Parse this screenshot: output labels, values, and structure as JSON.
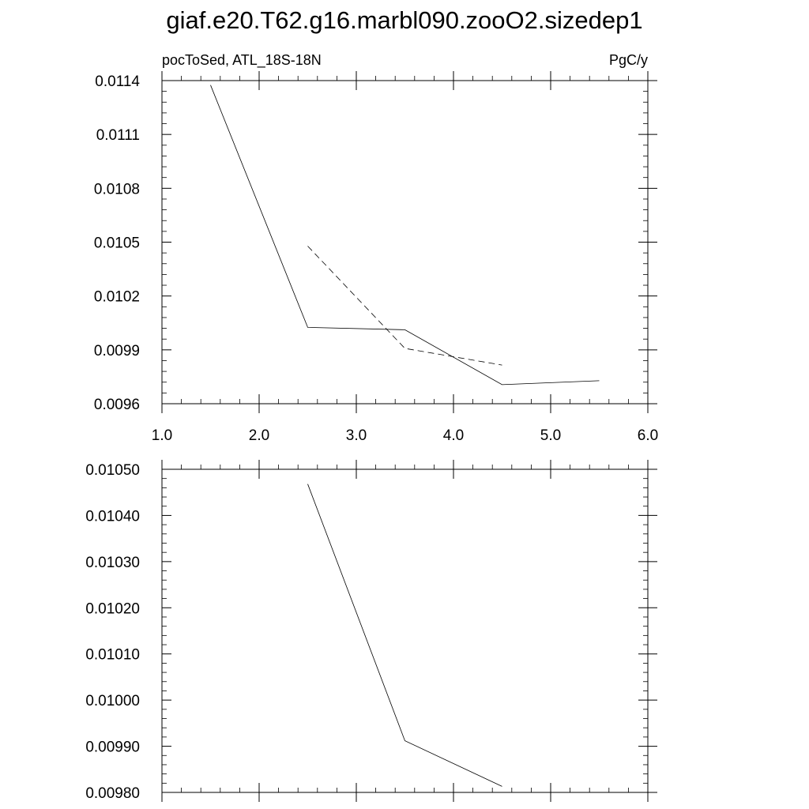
{
  "figure": {
    "title": "giaf.e20.T62.g16.marbl090.zooO2.sizedep1"
  },
  "chart_data": [
    {
      "type": "line",
      "left_label": "pocToSed, ATL_18S-18N",
      "right_label": "PgC/y",
      "xlim": [
        1.0,
        6.0
      ],
      "ylim": [
        0.0096,
        0.0114
      ],
      "x_ticks": [
        1.0,
        2.0,
        3.0,
        4.0,
        5.0,
        6.0
      ],
      "x_tick_labels": [
        "1.0",
        "2.0",
        "3.0",
        "4.0",
        "5.0",
        "6.0"
      ],
      "y_ticks": [
        0.0096,
        0.0099,
        0.0102,
        0.0105,
        0.0108,
        0.0111,
        0.0114
      ],
      "y_tick_labels": [
        "0.0096",
        "0.0099",
        "0.0102",
        "0.0105",
        "0.0108",
        "0.0111",
        "0.0114"
      ],
      "grid": false,
      "series": [
        {
          "style": "solid",
          "x": [
            1.5,
            2.5,
            3.5,
            4.5,
            5.5
          ],
          "y": [
            0.011375,
            0.010025,
            0.010012,
            0.009706,
            0.009728
          ]
        },
        {
          "style": "dashed",
          "x": [
            2.5,
            3.5,
            4.5
          ],
          "y": [
            0.010478,
            0.009908,
            0.009815
          ]
        }
      ]
    },
    {
      "type": "line",
      "xlim": [
        1.0,
        6.0
      ],
      "ylim": [
        0.0098,
        0.0105
      ],
      "x_ticks": [
        1.0,
        2.0,
        3.0,
        4.0,
        5.0,
        6.0
      ],
      "y_ticks": [
        0.0098,
        0.0099,
        0.01,
        0.0101,
        0.0102,
        0.0103,
        0.0104,
        0.0105
      ],
      "y_tick_labels": [
        "0.00980",
        "0.00990",
        "0.01000",
        "0.01010",
        "0.01020",
        "0.01030",
        "0.01040",
        "0.01050"
      ],
      "grid": false,
      "series": [
        {
          "style": "solid",
          "x": [
            2.5,
            3.5,
            4.5
          ],
          "y": [
            0.010468,
            0.009912,
            0.009813
          ]
        }
      ]
    }
  ]
}
